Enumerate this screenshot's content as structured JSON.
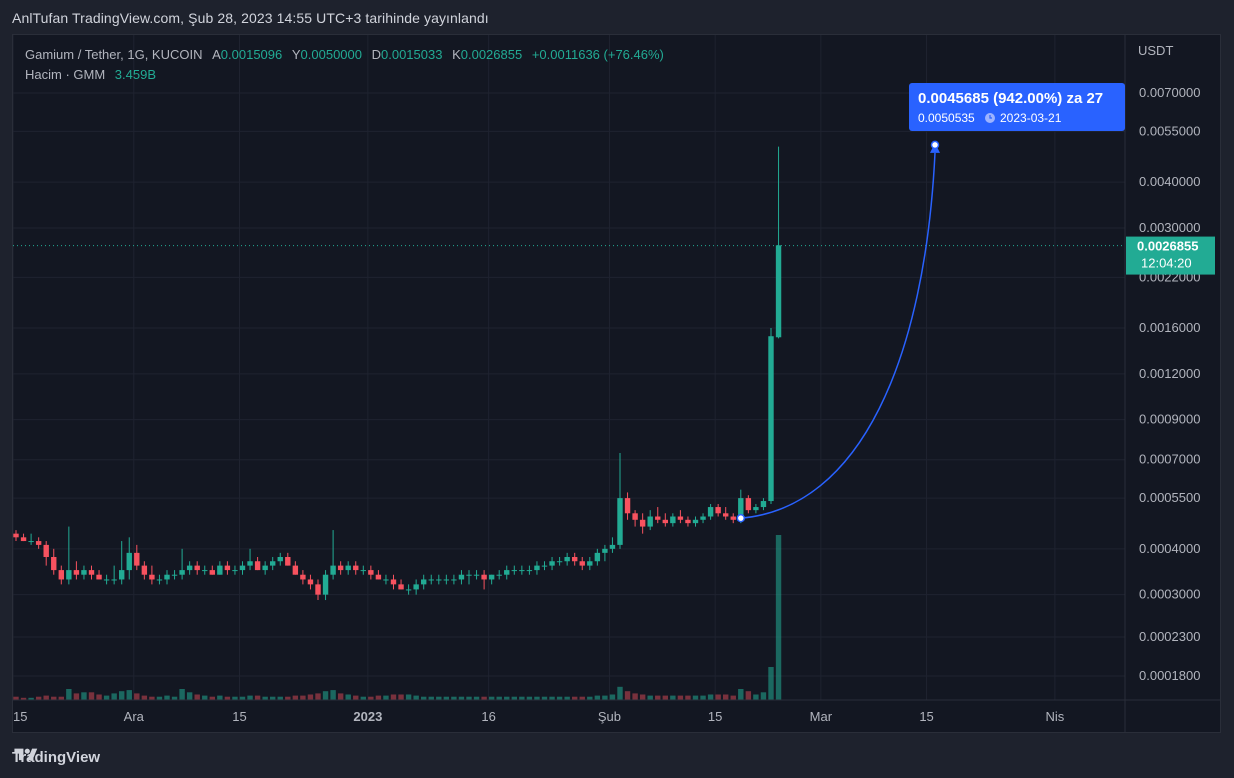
{
  "header": {
    "published": "AnlTufan TradingView.com, Şub 28, 2023 14:55 UTC+3 tarihinde yayınlandı"
  },
  "legend": {
    "symbol": "Gamium / Tether, 1G, KUCOIN",
    "open_key": "A",
    "open": "0.0015096",
    "high_key": "Y",
    "high": "0.0050000",
    "low_key": "D",
    "low": "0.0015033",
    "close_key": "K",
    "close": "0.0026855",
    "change": "+0.0011636 (+76.46%)",
    "volume_label": "Hacim · GMM",
    "volume": "3.459B"
  },
  "price_axis": {
    "unit": "USDT",
    "last_price": "0.0026855",
    "countdown": "12:04:20"
  },
  "annotation": {
    "line1": "0.0045685 (942.00%) za 27",
    "line2_price": "0.0050535",
    "line2_date": "2023-03-21",
    "clock_icon": "clock-icon"
  },
  "footer": {
    "brand": "TradingView",
    "logo_icon": "tradingview-logo-icon"
  },
  "colors": {
    "up": "#22ab94",
    "down": "#f7525f",
    "annotation": "#2962ff",
    "background": "#131722",
    "grid": "#1f2330"
  },
  "chart_data": {
    "type": "candlestick",
    "scale": "log",
    "interval": "1D",
    "y_ticks": [
      0.00018,
      0.00023,
      0.0003,
      0.0004,
      0.00055,
      0.0007,
      0.0009,
      0.0012,
      0.0016,
      0.0022,
      0.003,
      0.004,
      0.0055,
      0.007
    ],
    "y_tick_labels": [
      "0.0001800",
      "0.0002300",
      "0.0003000",
      "0.0004000",
      "0.0005500",
      "0.0007000",
      "0.0009000",
      "0.0012000",
      "0.0016000",
      "0.0022000",
      "0.0030000",
      "0.0040000",
      "0.0055000",
      "0.0070000"
    ],
    "x_ticks": [
      {
        "label": "15",
        "day": 0
      },
      {
        "label": "Ara",
        "day": 16
      },
      {
        "label": "15",
        "day": 30
      },
      {
        "label": "2023",
        "day": 47
      },
      {
        "label": "16",
        "day": 63
      },
      {
        "label": "Şub",
        "day": 79
      },
      {
        "label": "15",
        "day": 93
      },
      {
        "label": "Mar",
        "day": 107
      },
      {
        "label": "15",
        "day": 121
      },
      {
        "label": "Nis",
        "day": 138
      }
    ],
    "ohlcv": [
      [
        0.00044,
        0.00045,
        0.00042,
        0.00043,
        3
      ],
      [
        0.00043,
        0.00044,
        0.00042,
        0.00042,
        2
      ],
      [
        0.00042,
        0.00044,
        0.00041,
        0.00042,
        2
      ],
      [
        0.00042,
        0.00043,
        0.0004,
        0.00041,
        3
      ],
      [
        0.00041,
        0.00042,
        0.00036,
        0.00038,
        4
      ],
      [
        0.00038,
        0.0004,
        0.00034,
        0.00035,
        3
      ],
      [
        0.00035,
        0.00036,
        0.00032,
        0.00033,
        3
      ],
      [
        0.00033,
        0.00046,
        0.00032,
        0.00035,
        10
      ],
      [
        0.00035,
        0.00037,
        0.00033,
        0.00034,
        6
      ],
      [
        0.00034,
        0.00036,
        0.00033,
        0.00035,
        7
      ],
      [
        0.00035,
        0.00036,
        0.00033,
        0.00034,
        7
      ],
      [
        0.00034,
        0.00035,
        0.00033,
        0.00033,
        5
      ],
      [
        0.00033,
        0.00034,
        0.00032,
        0.00033,
        4
      ],
      [
        0.00033,
        0.00036,
        0.00032,
        0.00033,
        6
      ],
      [
        0.00033,
        0.00042,
        0.00032,
        0.00035,
        8
      ],
      [
        0.00035,
        0.00043,
        0.00033,
        0.00039,
        9
      ],
      [
        0.00039,
        0.00041,
        0.00035,
        0.00036,
        6
      ],
      [
        0.00036,
        0.00037,
        0.00033,
        0.00034,
        4
      ],
      [
        0.00034,
        0.00036,
        0.00032,
        0.00033,
        3
      ],
      [
        0.00033,
        0.00034,
        0.00032,
        0.00033,
        3
      ],
      [
        0.00033,
        0.00035,
        0.00032,
        0.00034,
        4
      ],
      [
        0.00034,
        0.00035,
        0.00033,
        0.00034,
        3
      ],
      [
        0.00034,
        0.0004,
        0.00033,
        0.00035,
        10
      ],
      [
        0.00035,
        0.00037,
        0.00034,
        0.00036,
        7
      ],
      [
        0.00036,
        0.00037,
        0.00034,
        0.00035,
        5
      ],
      [
        0.00035,
        0.00036,
        0.00034,
        0.00035,
        4
      ],
      [
        0.00035,
        0.00036,
        0.00034,
        0.00034,
        3
      ],
      [
        0.00034,
        0.00037,
        0.00034,
        0.00036,
        4
      ],
      [
        0.00036,
        0.00037,
        0.00034,
        0.00035,
        3
      ],
      [
        0.00035,
        0.00036,
        0.00034,
        0.00035,
        3
      ],
      [
        0.00035,
        0.00037,
        0.00034,
        0.00036,
        3
      ],
      [
        0.00036,
        0.0004,
        0.00035,
        0.00037,
        4
      ],
      [
        0.00037,
        0.00038,
        0.00035,
        0.00035,
        4
      ],
      [
        0.00035,
        0.00037,
        0.00034,
        0.00036,
        3
      ],
      [
        0.00036,
        0.00038,
        0.00035,
        0.00037,
        3
      ],
      [
        0.00037,
        0.00039,
        0.00036,
        0.00038,
        3
      ],
      [
        0.00038,
        0.00039,
        0.00036,
        0.00036,
        3
      ],
      [
        0.00036,
        0.00037,
        0.00034,
        0.00034,
        4
      ],
      [
        0.00034,
        0.00035,
        0.00032,
        0.00033,
        4
      ],
      [
        0.00033,
        0.00034,
        0.00031,
        0.00032,
        5
      ],
      [
        0.00032,
        0.00033,
        0.00029,
        0.0003,
        6
      ],
      [
        0.0003,
        0.00035,
        0.00029,
        0.00034,
        8
      ],
      [
        0.00034,
        0.00045,
        0.00033,
        0.00036,
        9
      ],
      [
        0.00036,
        0.00037,
        0.00034,
        0.00035,
        6
      ],
      [
        0.00035,
        0.00037,
        0.00034,
        0.00036,
        5
      ],
      [
        0.00036,
        0.00037,
        0.00034,
        0.00035,
        4
      ],
      [
        0.00035,
        0.00036,
        0.00034,
        0.00035,
        3
      ],
      [
        0.00035,
        0.00036,
        0.00033,
        0.00034,
        3
      ],
      [
        0.00034,
        0.00035,
        0.00033,
        0.00033,
        4
      ],
      [
        0.00033,
        0.00034,
        0.00032,
        0.00033,
        4
      ],
      [
        0.00033,
        0.00034,
        0.00031,
        0.00032,
        5
      ],
      [
        0.00032,
        0.00033,
        0.00031,
        0.00031,
        5
      ],
      [
        0.00031,
        0.00032,
        0.0003,
        0.00031,
        5
      ],
      [
        0.00031,
        0.00033,
        0.0003,
        0.00032,
        4
      ],
      [
        0.00032,
        0.00034,
        0.00031,
        0.00033,
        3
      ],
      [
        0.00033,
        0.00034,
        0.00032,
        0.00033,
        3
      ],
      [
        0.00033,
        0.00034,
        0.00032,
        0.00033,
        3
      ],
      [
        0.00033,
        0.00034,
        0.00032,
        0.00033,
        3
      ],
      [
        0.00033,
        0.00034,
        0.00032,
        0.00033,
        3
      ],
      [
        0.00033,
        0.00035,
        0.00032,
        0.00034,
        3
      ],
      [
        0.00034,
        0.00035,
        0.00032,
        0.00034,
        3
      ],
      [
        0.00034,
        0.00035,
        0.00033,
        0.00034,
        3
      ],
      [
        0.00034,
        0.00035,
        0.00031,
        0.00033,
        3
      ],
      [
        0.00033,
        0.00034,
        0.00032,
        0.00034,
        3
      ],
      [
        0.00034,
        0.00035,
        0.00033,
        0.00034,
        3
      ],
      [
        0.00034,
        0.00036,
        0.00033,
        0.00035,
        3
      ],
      [
        0.00035,
        0.00036,
        0.00034,
        0.00035,
        3
      ],
      [
        0.00035,
        0.00036,
        0.00034,
        0.00035,
        3
      ],
      [
        0.00035,
        0.00036,
        0.00034,
        0.00035,
        3
      ],
      [
        0.00035,
        0.00037,
        0.00034,
        0.00036,
        3
      ],
      [
        0.00036,
        0.00037,
        0.00035,
        0.00036,
        3
      ],
      [
        0.00036,
        0.00038,
        0.00035,
        0.00037,
        3
      ],
      [
        0.00037,
        0.00038,
        0.00036,
        0.00037,
        3
      ],
      [
        0.00037,
        0.00039,
        0.00036,
        0.00038,
        3
      ],
      [
        0.00038,
        0.00039,
        0.00036,
        0.00037,
        3
      ],
      [
        0.00037,
        0.00038,
        0.00035,
        0.00036,
        3
      ],
      [
        0.00036,
        0.00038,
        0.00035,
        0.00037,
        3
      ],
      [
        0.00037,
        0.0004,
        0.00036,
        0.00039,
        4
      ],
      [
        0.00039,
        0.00041,
        0.00037,
        0.0004,
        4
      ],
      [
        0.0004,
        0.00043,
        0.00039,
        0.00041,
        5
      ],
      [
        0.00041,
        0.00073,
        0.0004,
        0.00055,
        12
      ],
      [
        0.00055,
        0.00057,
        0.00048,
        0.0005,
        8
      ],
      [
        0.0005,
        0.00051,
        0.00046,
        0.00048,
        6
      ],
      [
        0.00048,
        0.0005,
        0.00044,
        0.00046,
        5
      ],
      [
        0.00046,
        0.00051,
        0.00045,
        0.00049,
        4
      ],
      [
        0.00049,
        0.00052,
        0.00047,
        0.00048,
        4
      ],
      [
        0.00048,
        0.0005,
        0.00046,
        0.00047,
        4
      ],
      [
        0.00047,
        0.0005,
        0.00046,
        0.00049,
        4
      ],
      [
        0.00049,
        0.00051,
        0.00047,
        0.00048,
        4
      ],
      [
        0.00048,
        0.00049,
        0.00046,
        0.00047,
        4
      ],
      [
        0.00047,
        0.00049,
        0.00046,
        0.00048,
        4
      ],
      [
        0.00048,
        0.0005,
        0.00047,
        0.00049,
        4
      ],
      [
        0.00049,
        0.00053,
        0.00048,
        0.00052,
        5
      ],
      [
        0.00052,
        0.00053,
        0.00049,
        0.0005,
        5
      ],
      [
        0.0005,
        0.00052,
        0.00048,
        0.00049,
        5
      ],
      [
        0.00049,
        0.0005,
        0.00047,
        0.00048,
        4
      ],
      [
        0.00048,
        0.00058,
        0.00047,
        0.00055,
        10
      ],
      [
        0.00055,
        0.00056,
        0.0005,
        0.00051,
        8
      ],
      [
        0.00051,
        0.00053,
        0.0005,
        0.00052,
        5
      ],
      [
        0.00052,
        0.00055,
        0.00051,
        0.00054,
        7
      ],
      [
        0.00054,
        0.0016,
        0.00053,
        0.00152,
        30
      ],
      [
        0.00151,
        0.005,
        0.0015,
        0.00269,
        150
      ]
    ]
  }
}
